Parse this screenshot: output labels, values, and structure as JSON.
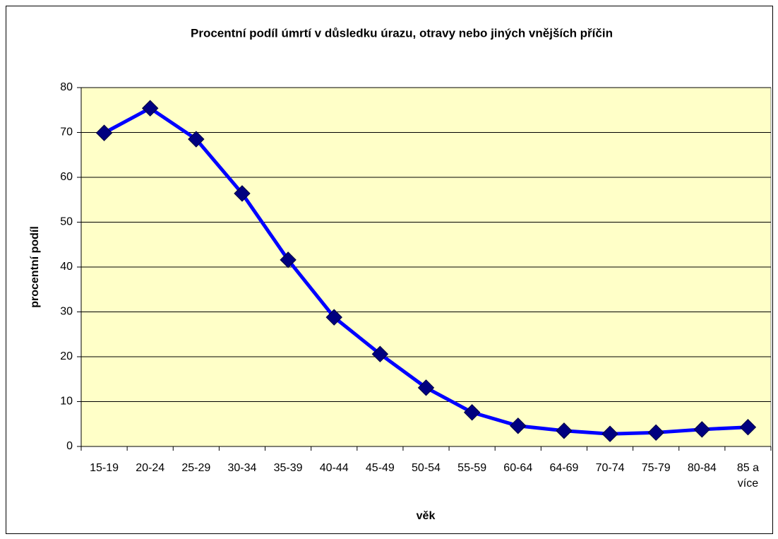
{
  "chart_data": {
    "type": "line",
    "title": "Procentní podíl úmrtí v důsledku úrazu, otravy nebo jiných vnějších příčin",
    "x_label": "věk",
    "y_label": "procentní podíl",
    "categories": [
      "15-19",
      "20-24",
      "25-29",
      "30-34",
      "35-39",
      "40-44",
      "45-49",
      "50-54",
      "55-59",
      "60-64",
      "64-69",
      "70-74",
      "75-79",
      "80-84",
      "85 a více"
    ],
    "series": [
      {
        "color": "#0000ff",
        "marker_color": "#000080",
        "values": [
          69.9,
          75.4,
          68.5,
          56.4,
          41.6,
          28.8,
          20.6,
          13.1,
          7.6,
          4.6,
          3.5,
          2.8,
          3.1,
          3.8,
          4.3
        ]
      }
    ],
    "ylim": [
      0,
      80
    ],
    "yticks": [
      0,
      10,
      20,
      30,
      40,
      50,
      60,
      70,
      80
    ],
    "grid": true,
    "plot_background": "#ffffc8"
  }
}
